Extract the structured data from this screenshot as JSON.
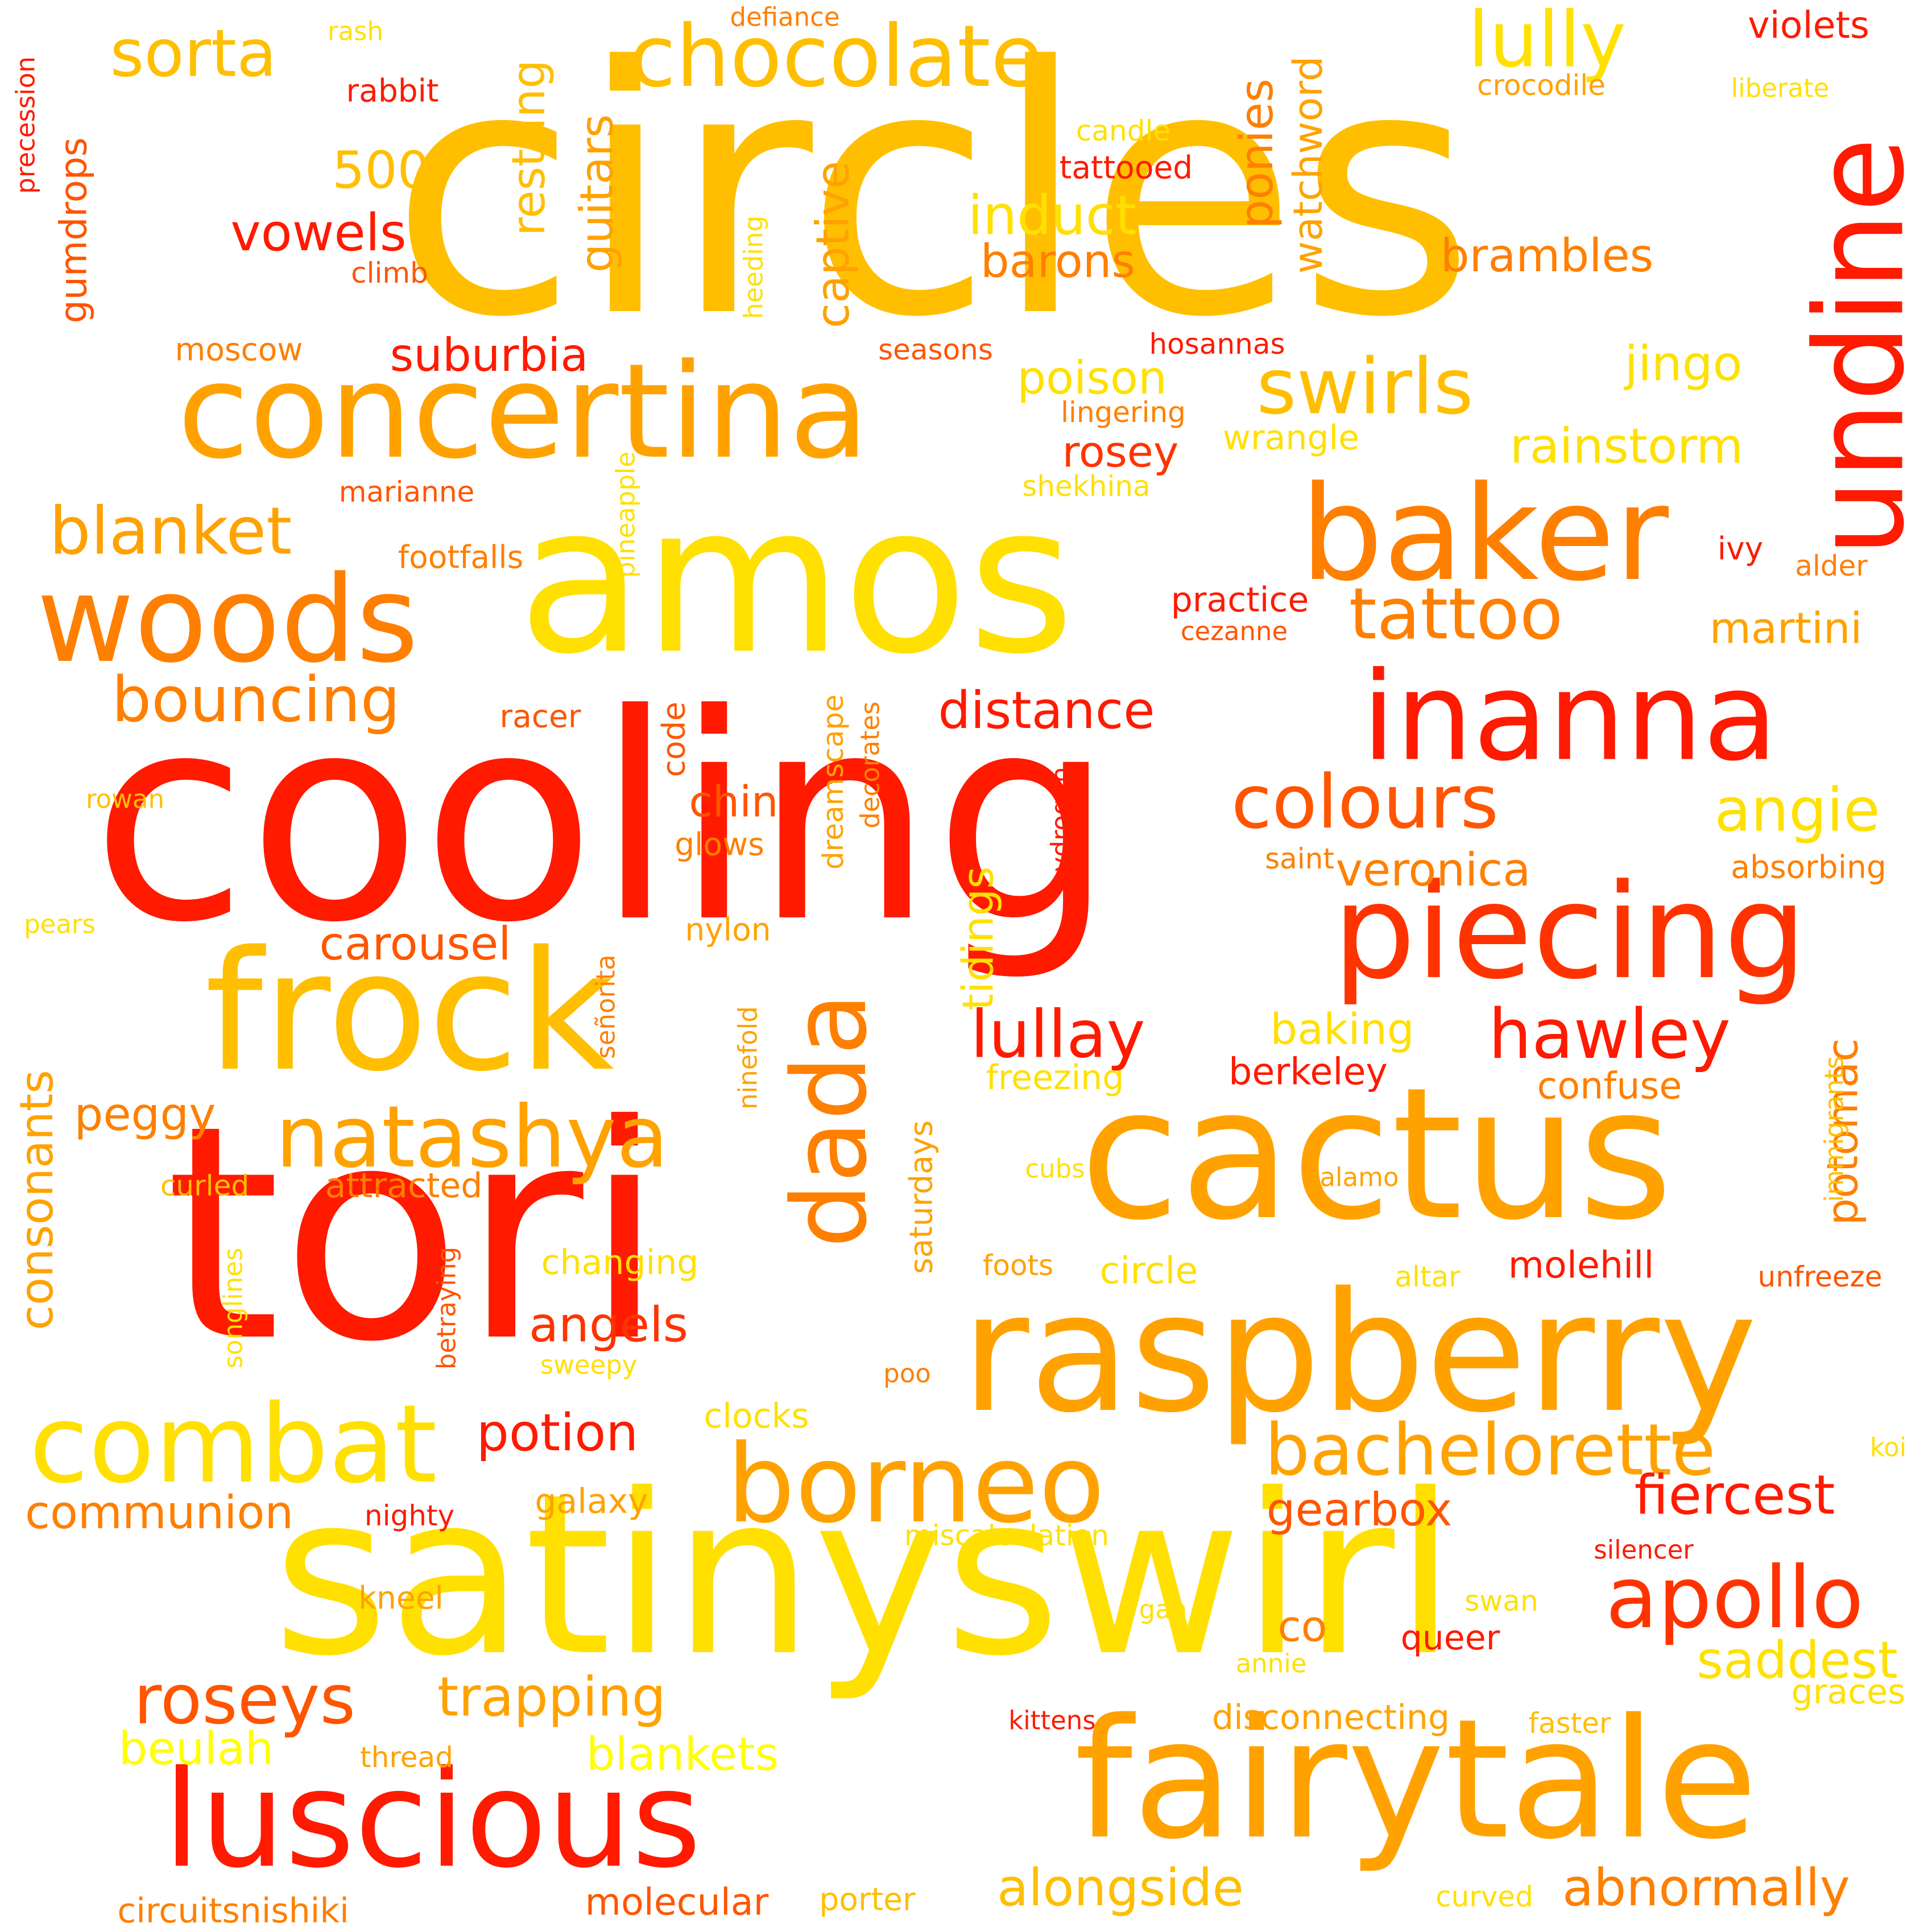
{
  "palette": {
    "red": "#ff1a00",
    "red_orange": "#ff3300",
    "orange_red": "#ff5500",
    "orange": "#ff7f00",
    "amber": "#ffa200",
    "gold": "#ffbf00",
    "yellow": "#ffe000",
    "bright_yellow": "#ffff00"
  },
  "words": [
    "circles",
    "cooling",
    "tori",
    "satinyswirl",
    "amos",
    "cactus",
    "raspberry",
    "fairytale",
    "frock",
    "concertina",
    "luscious",
    "piecing",
    "baker",
    "inanna",
    "woods",
    "undine",
    "combat",
    "borneo",
    "chocolate",
    "dada",
    "natashya",
    "bachelorette",
    "swirls",
    "tattoo",
    "colours",
    "lully",
    "apollo",
    "roseys",
    "hawley",
    "bouncing",
    "lullay",
    "blanket",
    "alongside",
    "sorta",
    "distance",
    "abnormally",
    "fiercest",
    "angie",
    "rainstorm",
    "jingo",
    "saddest",
    "induct",
    "trapping",
    "potion",
    "angels",
    "vowels",
    "communion",
    "brambles",
    "carousel",
    "restring",
    "poison",
    "barons",
    "ponies",
    "captive",
    "tidings",
    "gearbox",
    "guitars",
    "watchword",
    "blankets",
    "molecular",
    "suburbia",
    "consonants",
    "500",
    "veronica",
    "beulah",
    "baking",
    "potomac",
    "martini",
    "rosey",
    "peggy",
    "chin",
    "attracted",
    "changing",
    "violets",
    "practice",
    "gumdrops",
    "circuitsnishiki",
    "confuse",
    "graces",
    "berkeley",
    "molehill",
    "co",
    "galaxy",
    "queer",
    "porter",
    "nylon",
    "code",
    "clocks",
    "wrangle",
    "dreamscape",
    "tattooed",
    "freezing",
    "circle",
    "footfalls",
    "curled",
    "circle",
    "shekhina",
    "alder",
    "kneel",
    "absorbing",
    "racer",
    "moscow",
    "disconnecting",
    "glows",
    "nighty",
    "miscalculation",
    "lingering",
    "ivy",
    "thread",
    "faster",
    "hosannas",
    "decorates",
    "crocodile",
    "swan",
    "defiance",
    "hydrogen",
    "sweepy",
    "seasons",
    "foots",
    "curved",
    "liberate",
    "betraying",
    "pineapple",
    "ninefold",
    "heeding",
    "marianne",
    "saturdays",
    "rabbit",
    "cezanne",
    "immigrants",
    "unfreeze",
    "climb",
    "kittens",
    "saint",
    "altar",
    "señorita",
    "silencer",
    "songlines",
    "candle",
    "cubs",
    "annie",
    "alamo",
    "rowan",
    "pears",
    "poo",
    "rash",
    "precession",
    "koi",
    "gah"
  ]
}
